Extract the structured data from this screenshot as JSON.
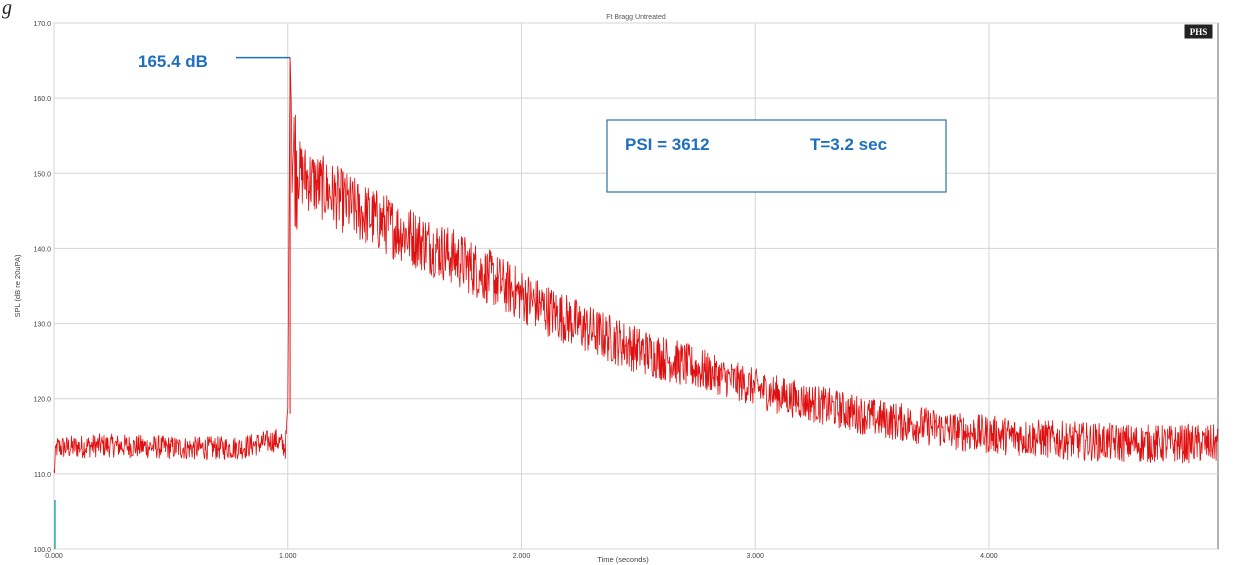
{
  "chart_data": {
    "type": "line",
    "title": "Ft Bragg Untreated",
    "xlabel": "Time (seconds)",
    "ylabel": "SPL (dB re 20uPA)",
    "xlim": [
      0,
      4.98
    ],
    "ylim": [
      100,
      170
    ],
    "x_ticks": [
      "0.000",
      "1.000",
      "2.000",
      "3.000",
      "4.000"
    ],
    "x_tick_values": [
      0,
      1,
      2,
      3,
      4
    ],
    "y_ticks": [
      "100.0",
      "110.0",
      "120.0",
      "130.0",
      "140.0",
      "150.0",
      "160.0",
      "170.0"
    ],
    "y_tick_values": [
      100,
      110,
      120,
      130,
      140,
      150,
      160,
      170
    ],
    "grid": true,
    "series": [
      {
        "color": "#e01010",
        "x": [
          0.0,
          0.01,
          0.05,
          0.2,
          0.4,
          0.6,
          0.8,
          0.95,
          0.99,
          1.0,
          1.01,
          1.02,
          1.05,
          1.1,
          1.2,
          1.3,
          1.5,
          1.7,
          1.9,
          2.1,
          2.3,
          2.5,
          2.7,
          2.9,
          3.1,
          3.3,
          3.5,
          3.7,
          3.9,
          4.1,
          4.3,
          4.5,
          4.7,
          4.98
        ],
        "values": [
          110.0,
          113.5,
          113.5,
          113.8,
          113.6,
          113.4,
          113.5,
          114.5,
          113.5,
          118.0,
          165.4,
          153.0,
          150.0,
          149.0,
          147.0,
          145.0,
          142.0,
          139.0,
          135.5,
          132.0,
          129.0,
          126.5,
          124.5,
          122.5,
          120.5,
          119.0,
          117.5,
          116.5,
          115.5,
          115.0,
          114.5,
          114.2,
          114.0,
          114.0
        ]
      }
    ],
    "annotations": {
      "peak_label": "165.4 dB",
      "peak_x": 1.01,
      "peak_y": 165.4,
      "psi_label": "PSI = 3612",
      "t_label": "T=3.2 sec"
    },
    "badge": "PHS"
  },
  "corner_glyph": "g"
}
